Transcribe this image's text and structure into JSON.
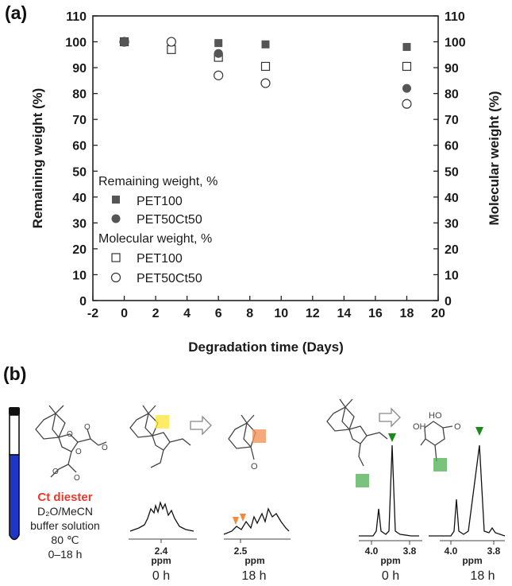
{
  "panel_a_label": "(a)",
  "panel_b_label": "(b)",
  "chart_data": {
    "type": "scatter",
    "xlabel": "Degradation time (Days)",
    "ylabel": "Remaining weight (%)",
    "y2label": "Molecular weight (%)",
    "xlim": [
      -2,
      20
    ],
    "ylim": [
      0,
      110
    ],
    "y2lim": [
      0,
      110
    ],
    "xticks": [
      -2,
      0,
      2,
      4,
      6,
      8,
      10,
      12,
      14,
      16,
      18,
      20
    ],
    "yticks": [
      0,
      10,
      20,
      30,
      40,
      50,
      60,
      70,
      80,
      90,
      100,
      110
    ],
    "legend_heading_1": "Remaining weight, %",
    "legend_heading_2": "Molecular weight, %",
    "legend_position": "lower-left",
    "series": [
      {
        "name": "PET100",
        "group": "Remaining weight, %",
        "marker": "filled-square",
        "x": [
          0,
          6,
          9,
          18
        ],
        "y": [
          100,
          99.5,
          99,
          98
        ]
      },
      {
        "name": "PET50Ct50",
        "group": "Remaining weight, %",
        "marker": "filled-circle",
        "x": [
          0,
          6,
          18
        ],
        "y": [
          100,
          95.5,
          82
        ]
      },
      {
        "name": "PET100",
        "group": "Molecular weight, %",
        "marker": "open-square",
        "x": [
          0,
          3,
          6,
          9,
          18
        ],
        "y": [
          100,
          97,
          94,
          90.5,
          90.5
        ]
      },
      {
        "name": "PET50Ct50",
        "group": "Molecular weight, %",
        "marker": "open-circle",
        "x": [
          0,
          3,
          6,
          9,
          18
        ],
        "y": [
          100,
          100,
          87,
          84,
          76
        ]
      }
    ]
  },
  "scheme": {
    "compound_name": "Ct diester",
    "solvent": "D₂O/MeCN",
    "buffer": "buffer solution",
    "temperature": "80 ℃",
    "duration": "0–18 h",
    "accent_color": "#e8392c"
  },
  "nmr_left": {
    "spec1": {
      "tick": "2.4",
      "unit": "ppm",
      "time": "0 h"
    },
    "spec2": {
      "tick": "2.5",
      "unit": "ppm",
      "time": "18 h"
    }
  },
  "nmr_right": {
    "spec1": {
      "tick_a": "4.0",
      "tick_b": "3.8",
      "unit": "ppm",
      "time": "0 h"
    },
    "spec2": {
      "tick_a": "4.0",
      "tick_b": "3.8",
      "unit": "ppm",
      "time": "18 h"
    }
  },
  "molecule_labels": {
    "ho": "HO",
    "oh": "OH",
    "o": "O"
  }
}
